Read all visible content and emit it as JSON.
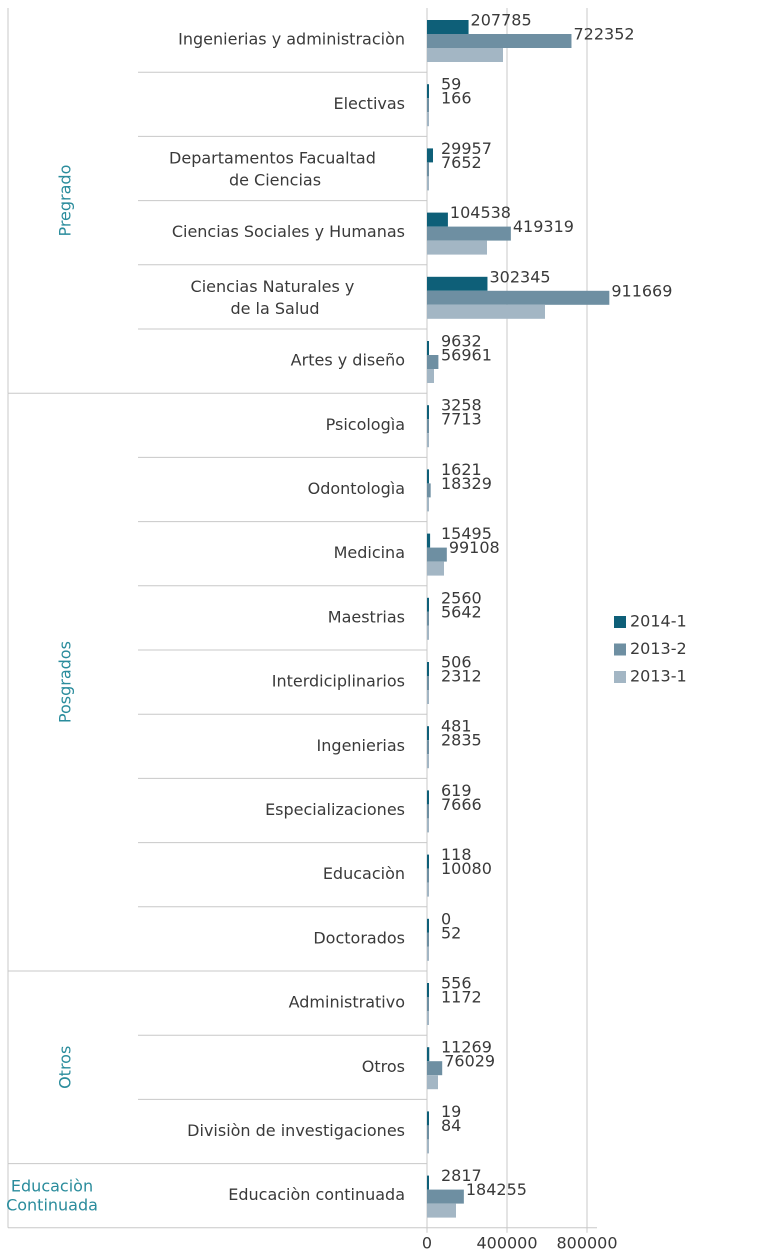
{
  "chart_data": {
    "type": "bar",
    "orientation": "horizontal",
    "categories": [
      "Ingenierias y administraciòn",
      "Electivas",
      "Departamentos Facualtad de Ciencias",
      "Ciencias Sociales y Humanas",
      "Ciencias Naturales y de la Salud",
      "Artes y diseño",
      "Psicologìa",
      "Odontologìa",
      "Medicina",
      "Maestrias",
      "Interdiciplinarios",
      "Ingenierias",
      "Especializaciones",
      "Educaciòn",
      "Doctorados",
      "Administrativo",
      "Otros",
      "Divisiòn de investigaciones",
      "Educaciòn continuada"
    ],
    "groups": [
      {
        "label": "Pregrado",
        "count": 6
      },
      {
        "label": "Posgrados",
        "count": 9
      },
      {
        "label": "Otros",
        "count": 3
      },
      {
        "label": [
          "Educaciòn",
          "Continuada"
        ],
        "count": 1
      }
    ],
    "series": [
      {
        "name": "2014-1",
        "color": "#0e5f78",
        "values": [
          207785,
          59,
          29957,
          104538,
          302345,
          9632,
          3258,
          1621,
          15495,
          2560,
          506,
          481,
          619,
          118,
          0,
          556,
          11269,
          19,
          2817
        ]
      },
      {
        "name": "2013-2",
        "color": "#6e8fa2",
        "values": [
          722352,
          166,
          7652,
          419319,
          911669,
          56961,
          7713,
          18329,
          99108,
          5642,
          2312,
          2835,
          7666,
          10080,
          52,
          1172,
          76029,
          84,
          184255
        ]
      },
      {
        "name": "2013-1",
        "color": "#a3b6c4",
        "values": [
          380000,
          8000,
          5000,
          300000,
          590000,
          35000,
          8000,
          10000,
          85000,
          5000,
          3000,
          3000,
          8000,
          8000,
          3000,
          3000,
          55000,
          3000,
          145000
        ]
      }
    ],
    "xlim": [
      0,
      1000000
    ],
    "xticks": [
      0,
      400000,
      800000
    ],
    "grid": true,
    "legend": "right"
  }
}
